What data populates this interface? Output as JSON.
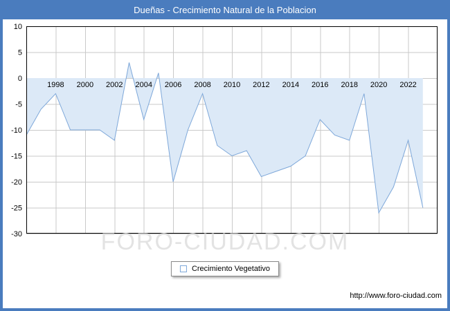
{
  "header": {
    "title": "Dueñas - Crecimiento Natural de la Poblacion"
  },
  "legend": {
    "label": "Crecimiento Vegetativo"
  },
  "watermark": {
    "text": "FORO-CIUDAD.COM"
  },
  "footer": {
    "url": "http://www.foro-ciudad.com"
  },
  "colors": {
    "frame": "#4a7cbe",
    "line": "#7da7d9",
    "fill": "#dce9f7",
    "grid": "#c9c9c9",
    "plot_border": "#000000",
    "watermark": "#e3e3e3"
  },
  "chart_data": {
    "type": "area",
    "title": "Dueñas - Crecimiento Natural de la Poblacion",
    "legend": "Crecimiento Vegetativo",
    "x": [
      1996,
      1997,
      1998,
      1999,
      2000,
      2001,
      2002,
      2003,
      2004,
      2005,
      2006,
      2007,
      2008,
      2009,
      2010,
      2011,
      2012,
      2013,
      2014,
      2015,
      2016,
      2017,
      2018,
      2019,
      2020,
      2021,
      2022,
      2023
    ],
    "values": [
      -11,
      -6,
      -3,
      -10,
      -10,
      -10,
      -12,
      3,
      -8,
      1,
      -20,
      -10,
      -3,
      -13,
      -15,
      -14,
      -19,
      -18,
      -17,
      -15,
      -8,
      -11,
      -12,
      -3,
      -26,
      -21,
      -12,
      -25
    ],
    "xlim": [
      1996,
      2024
    ],
    "ylim": [
      -30,
      10
    ],
    "xticks": [
      1998,
      2000,
      2002,
      2004,
      2006,
      2008,
      2010,
      2012,
      2014,
      2016,
      2018,
      2020,
      2022
    ],
    "yticks": [
      10,
      5,
      0,
      -5,
      -10,
      -15,
      -20,
      -25,
      -30
    ],
    "baseline": 0,
    "grid": true,
    "legend_position": "bottom-center",
    "xlabel": "",
    "ylabel": ""
  }
}
